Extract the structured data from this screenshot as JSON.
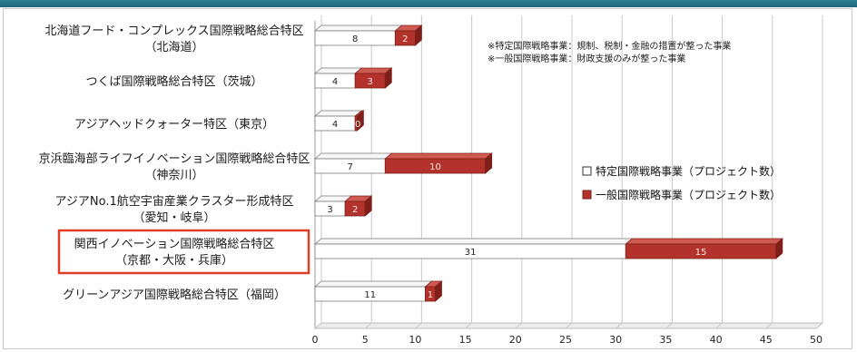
{
  "chart_data": {
    "type": "bar",
    "orientation": "horizontal",
    "stacked": true,
    "categories": [
      [
        "北海道フード・コンプレックス国際戦略総合特区",
        "（北海道）"
      ],
      [
        "つくば国際戦略総合特区（茨城）"
      ],
      [
        "アジアヘッドクォーター特区（東京）"
      ],
      [
        "京浜臨海部ライフイノベーション国際戦略総合特区",
        "（神奈川）"
      ],
      [
        "アジアNo.1航空宇宙産業クラスター形成特区",
        "（愛知・岐阜）"
      ],
      [
        "関西イノベーション国際戦略総合特区",
        "（京都・大阪・兵庫）"
      ],
      [
        "グリーンアジア国際戦略総合特区（福岡）"
      ]
    ],
    "series": [
      {
        "name": "特定国際戦略事業（プロジェクト数）",
        "values": [
          8,
          4,
          4,
          7,
          3,
          31,
          11
        ]
      },
      {
        "name": "一般国際戦略事業（プロジェクト数）",
        "values": [
          2,
          3,
          0.2,
          10,
          2,
          15,
          1
        ]
      }
    ],
    "value_labels": [
      [
        "8",
        "4",
        "4",
        "7",
        "3",
        "31",
        "11"
      ],
      [
        "2",
        "3",
        "0",
        "10",
        "2",
        "15",
        "1"
      ]
    ],
    "xlim": [
      0,
      50
    ],
    "xticks": [
      "0",
      "5",
      "10",
      "15",
      "20",
      "25",
      "30",
      "35",
      "40",
      "45",
      "50"
    ],
    "highlighted_category_index": 5,
    "legend_position": "right",
    "grid": "vertical",
    "colors": {
      "series1_fill": "#ffffff",
      "series1_stroke": "#7a7a7a",
      "series2_fill": "#b3322c",
      "series2_dark": "#7e1f1a",
      "highlight_border": "#e03c26",
      "grid": "#c9c9c9",
      "series2_label": "#ffe8e0"
    }
  },
  "notes": [
    "※特定国際戦略事業：規制、税制・金融の措置が整った事業",
    "※一般国際戦略事業：財政支援のみが整った事業"
  ]
}
